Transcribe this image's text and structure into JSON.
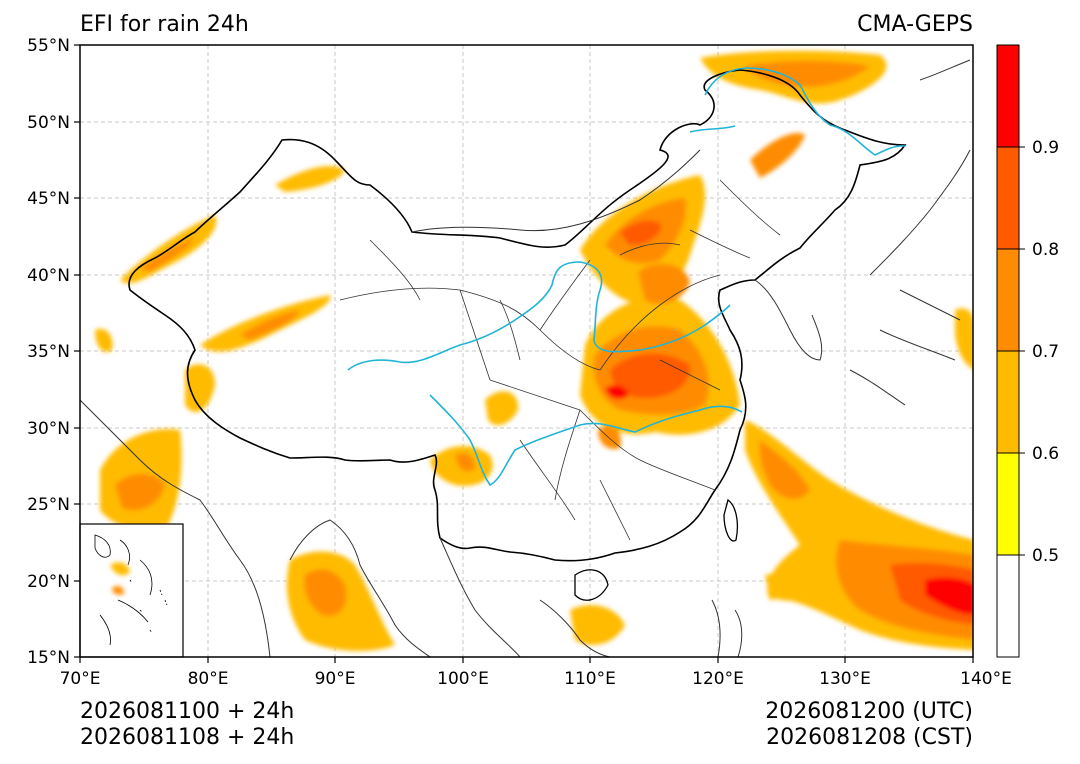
{
  "map": {
    "title_left": "EFI for rain 24h",
    "title_right": "CMA-GEPS",
    "lat_labels": [
      "55°N",
      "50°N",
      "45°N",
      "40°N",
      "35°N",
      "30°N",
      "25°N",
      "20°N",
      "15°N"
    ],
    "lon_labels": [
      "70°E",
      "80°E",
      "90°E",
      "100°E",
      "110°E",
      "120°E",
      "130°E",
      "140°E"
    ],
    "colorbar": {
      "labels": [
        "0.9",
        "0.8",
        "0.7",
        "0.6",
        "0.5"
      ],
      "colors": [
        "#ff0000",
        "#ff5a00",
        "#ff8c00",
        "#ffbb00",
        "#ffff00",
        "#ffffff"
      ]
    },
    "footer": {
      "left_line1": "2026081100 + 24h",
      "left_line2": "2026081108 + 24h",
      "right_line1": "2026081200 (UTC)",
      "right_line2": "2026081208 (CST)"
    }
  }
}
